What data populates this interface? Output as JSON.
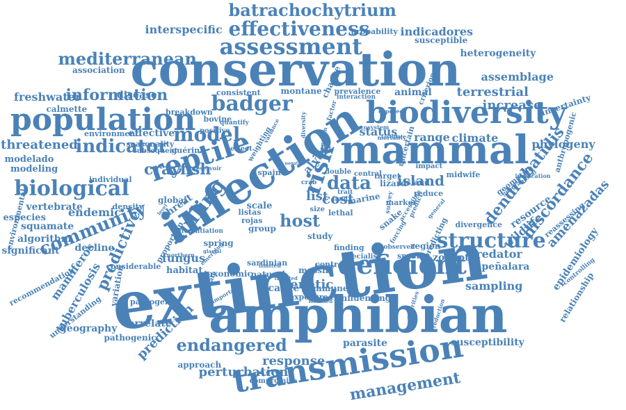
{
  "word_color": "#4a82b8",
  "background_color": "#ffffff",
  "words": [
    "extinction",
    "amphibian",
    "infection",
    "conservation",
    "mammal",
    "biodiversity",
    "transmission",
    "population",
    "reptile",
    "deficient",
    "biological",
    "badger",
    "culling",
    "community",
    "risk",
    "model",
    "structure",
    "indicator",
    "endangered",
    "data",
    "assessment",
    "effectiveness",
    "batrachochytrium",
    "mediterranean",
    "information",
    "threatened",
    "crayfish",
    "prediction",
    "dendrobatidis",
    "discordance",
    "predictive",
    "tuberculosis",
    "host",
    "cost",
    "list",
    "island",
    "terrestrial",
    "assemblage",
    "increase",
    "freshwater",
    "interspecific",
    "indicadores",
    "management",
    "perturbation",
    "response",
    "parasite",
    "sampling",
    "wildlife",
    "predator",
    "amenazadas",
    "genetic",
    "fungus",
    "vertebrate",
    "squamate",
    "algorithm",
    "decline",
    "endemic",
    "especies",
    "modelado",
    "modeling",
    "climate",
    "range",
    "status",
    "phylogeny",
    "resource",
    "epidemiology",
    "zoonotic",
    "peñalara",
    "relationship",
    "susceptibility",
    "exposure",
    "animal",
    "disease",
    "mamiferos",
    "geography",
    "correlate",
    "pathogenic",
    "approach",
    "compromise",
    "probability",
    "susceptible",
    "heterogeneity",
    "uncertainty",
    "anthropogenic",
    "association",
    "calmette",
    "breakdown",
    "guérin",
    "effective",
    "environment",
    "bovine",
    "positive",
    "seasonality",
    "subsequent",
    "individual",
    "control",
    "target",
    "island",
    "midwife",
    "alytes",
    "spain",
    "scale",
    "lethal",
    "marine",
    "threat",
    "spring",
    "significant",
    "recommendation",
    "variation",
    "understanding",
    "pathogen",
    "considerable",
    "environmental",
    "global",
    "consistent",
    "prevalence",
    "criterion",
    "interaction",
    "montane",
    "change",
    "immune",
    "influencing",
    "natural",
    "taxonomic",
    "massif",
    "biology",
    "cattle",
    "finding",
    "study",
    "region",
    "specific",
    "observed",
    "lizard",
    "land",
    "trait",
    "geometric",
    "reassessing",
    "divergence",
    "implication",
    "geographical",
    "forcing",
    "snake",
    "specialist",
    "rojas",
    "listas",
    "group",
    "size",
    "limited",
    "crab",
    "effect",
    "marker",
    "reduce",
    "impact",
    "double",
    "central",
    "survey",
    "glacial",
    "density",
    "emerging",
    "habitat",
    "proportion",
    "estimate",
    "important",
    "sardinian",
    "weighting",
    "differentiation",
    "factor",
    "diversity",
    "accessible",
    "predict",
    "negative",
    "common",
    "general",
    "exposed",
    "ecosystem",
    "facilitate",
    "variance",
    "level",
    "localised",
    "deficiency",
    "priorities",
    "reduction",
    "controlling",
    "predicting",
    "uncertain",
    "quantify",
    "reservoir",
    "northern",
    "targeted",
    "mortality",
    "dispersal"
  ]
}
